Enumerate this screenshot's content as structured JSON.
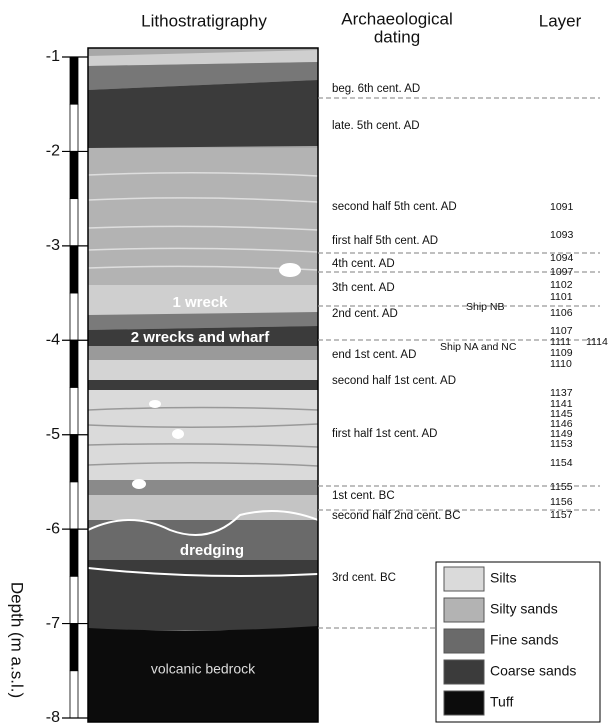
{
  "header": {
    "lithostratigraphy": "Lithostratigraphy",
    "dating": [
      "Archaeological",
      "dating"
    ],
    "layer": "Layer"
  },
  "axis": {
    "label": "Depth (m a.s.l.)",
    "ticks": [
      -1,
      -2,
      -3,
      -4,
      -5,
      -6,
      -7,
      -8
    ]
  },
  "column_labels": [
    "1 wreck",
    "2 wrecks and wharf",
    "dredging",
    "volcanic bedrock"
  ],
  "dating": [
    "beg. 6th cent. AD",
    "late. 5th cent. AD",
    "second half 5th cent. AD",
    "first half 5th cent. AD",
    "4th cent. AD",
    "3th cent. AD",
    "2nd cent. AD",
    "end 1st cent. AD",
    "second half 1st cent. AD",
    "first half 1st cent. AD",
    "1st cent. BC",
    "second half 2nd cent. BC",
    "3rd cent. BC"
  ],
  "layers": [
    "1091",
    "1093",
    "1094",
    "1097",
    "1102",
    "1101",
    "1106",
    "1107",
    "1111",
    "1114",
    "1109",
    "1110",
    "1137",
    "1141",
    "1145",
    "1146",
    "1149",
    "1153",
    "1154",
    "1155",
    "1156",
    "1157"
  ],
  "ships": [
    "Ship NB",
    "Ship NA and NC"
  ],
  "legend": [
    "Silts",
    "Silty sands",
    "Fine sands",
    "Coarse sands",
    "Tuff"
  ]
}
